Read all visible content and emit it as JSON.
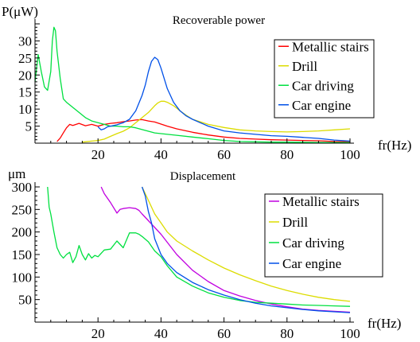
{
  "chart_data": [
    {
      "type": "line",
      "title": "Recoverable power",
      "ylabel": "P(μW)",
      "xlabel": "fr(Hz)",
      "xlim": [
        0,
        100
      ],
      "ylim": [
        0,
        35
      ],
      "xticks": [
        20,
        40,
        60,
        80,
        100
      ],
      "yticks": [
        5,
        10,
        15,
        20,
        25,
        30
      ],
      "legend_position": "top-right",
      "series": [
        {
          "name": "Metallic stairs",
          "color": "#ff0000",
          "x": [
            7,
            8,
            9,
            10,
            11,
            12,
            14,
            16,
            18,
            20,
            22,
            24,
            26,
            28,
            30,
            32,
            34,
            36,
            38,
            40,
            42,
            45,
            50,
            55,
            60,
            65,
            70,
            75,
            80,
            85,
            90,
            95,
            100
          ],
          "y": [
            0.5,
            1.5,
            3.0,
            4.5,
            5.5,
            5.2,
            5.8,
            5.1,
            5.5,
            5.0,
            5.5,
            5.8,
            6.0,
            6.3,
            6.5,
            6.8,
            6.9,
            6.5,
            6.2,
            5.6,
            5.0,
            4.2,
            3.2,
            2.4,
            1.8,
            1.4,
            1.2,
            1.0,
            0.9,
            0.8,
            0.7,
            0.5,
            0.4
          ]
        },
        {
          "name": "Drill",
          "color": "#dcdc00",
          "x": [
            15,
            18,
            20,
            22,
            24,
            26,
            28,
            30,
            32,
            34,
            36,
            38,
            39,
            40,
            41,
            42,
            44,
            46,
            48,
            50,
            55,
            60,
            65,
            70,
            75,
            80,
            85,
            90,
            95,
            100
          ],
          "y": [
            0.3,
            0.6,
            0.8,
            1.2,
            2.0,
            2.8,
            3.5,
            4.5,
            6.0,
            7.5,
            9.0,
            11.0,
            11.8,
            12.3,
            12.3,
            12.0,
            11.0,
            9.5,
            8.2,
            7.0,
            5.5,
            4.6,
            3.9,
            3.6,
            3.4,
            3.3,
            3.4,
            3.6,
            3.9,
            4.2
          ]
        },
        {
          "name": "Car driving",
          "color": "#00e040",
          "x": [
            0,
            1,
            2,
            3,
            4,
            5,
            5.5,
            6,
            6.5,
            7,
            8,
            9,
            10,
            12,
            14,
            16,
            18,
            20,
            22,
            24,
            26,
            28,
            30,
            32,
            34,
            36,
            38,
            40,
            45,
            50,
            55,
            60,
            65,
            70,
            75,
            80,
            90,
            100
          ],
          "y": [
            18,
            26,
            21,
            16.5,
            15.5,
            21,
            30,
            34,
            33,
            27,
            19,
            13,
            12,
            10.5,
            9,
            7.5,
            6.5,
            6.0,
            5.5,
            5.0,
            5.0,
            4.8,
            4.8,
            4.5,
            4.0,
            3.5,
            3.0,
            2.8,
            2.3,
            1.8,
            1.3,
            0.8,
            0.5,
            0.4,
            0.3,
            0.3,
            0.2,
            0.2
          ]
        },
        {
          "name": "Car engine",
          "color": "#0050e8",
          "x": [
            20,
            21,
            22,
            23,
            24,
            26,
            28,
            30,
            32,
            34,
            35,
            36,
            37,
            38,
            39,
            40,
            42,
            44,
            46,
            48,
            50,
            55,
            60,
            65,
            70,
            75,
            80,
            85,
            90,
            95,
            100
          ],
          "y": [
            4.8,
            3.9,
            4.2,
            4.8,
            5.0,
            5.4,
            6.0,
            7.0,
            9.5,
            14,
            17,
            21,
            24,
            25.2,
            24.5,
            22,
            16,
            12,
            9.5,
            8.0,
            7.0,
            5.0,
            3.6,
            3.0,
            2.6,
            2.2,
            2.0,
            1.7,
            1.4,
            0.9,
            0.6
          ]
        }
      ]
    },
    {
      "type": "line",
      "title": "Displacement",
      "ylabel": "μm",
      "xlabel": "fr(Hz)",
      "xlim": [
        0,
        100
      ],
      "ylim": [
        0,
        300
      ],
      "xticks": [
        20,
        40,
        60,
        80,
        100
      ],
      "yticks": [
        50,
        100,
        150,
        200,
        250,
        300
      ],
      "legend_position": "top-right",
      "series": [
        {
          "name": "Metallic stairs",
          "color": "#c000e0",
          "x": [
            21,
            22,
            24,
            26,
            27,
            28,
            30,
            32,
            33,
            34,
            36,
            40,
            45,
            50,
            55,
            60,
            65,
            70,
            75,
            80,
            85,
            90,
            95,
            100
          ],
          "y": [
            300,
            285,
            265,
            242,
            250,
            252,
            254,
            252,
            248,
            240,
            225,
            195,
            150,
            115,
            90,
            70,
            58,
            48,
            40,
            34,
            29,
            26,
            24,
            22
          ]
        },
        {
          "name": "Drill",
          "color": "#dcdc00",
          "x": [
            34,
            36,
            38,
            40,
            42,
            45,
            50,
            55,
            60,
            65,
            70,
            75,
            80,
            85,
            90,
            95,
            100
          ],
          "y": [
            300,
            270,
            240,
            220,
            200,
            180,
            158,
            138,
            120,
            105,
            92,
            80,
            70,
            62,
            55,
            50,
            46
          ]
        },
        {
          "name": "Car driving",
          "color": "#00e040",
          "x": [
            4,
            4.5,
            5,
            6,
            7,
            8,
            9,
            10,
            11,
            12,
            13,
            14,
            15,
            16,
            17,
            18,
            19,
            20,
            22,
            24,
            26,
            28,
            30,
            32,
            33,
            34,
            36,
            38,
            40,
            42,
            45,
            50,
            55,
            60,
            65,
            70,
            75,
            80,
            85,
            90,
            95,
            100
          ],
          "y": [
            300,
            255,
            240,
            200,
            165,
            150,
            142,
            150,
            155,
            132,
            145,
            170,
            150,
            138,
            152,
            142,
            148,
            145,
            160,
            162,
            180,
            165,
            198,
            198,
            195,
            190,
            178,
            158,
            145,
            125,
            100,
            80,
            65,
            55,
            48,
            44,
            42,
            40,
            38,
            37,
            36,
            35
          ]
        },
        {
          "name": "Car engine",
          "color": "#0050e8",
          "x": [
            34,
            35,
            36,
            37,
            38,
            40,
            42,
            45,
            50,
            55,
            60,
            65,
            70,
            75,
            80,
            85,
            90,
            95,
            100
          ],
          "y": [
            300,
            280,
            245,
            220,
            185,
            150,
            130,
            110,
            88,
            72,
            60,
            50,
            42,
            36,
            32,
            28,
            25,
            23,
            21
          ]
        }
      ]
    }
  ]
}
